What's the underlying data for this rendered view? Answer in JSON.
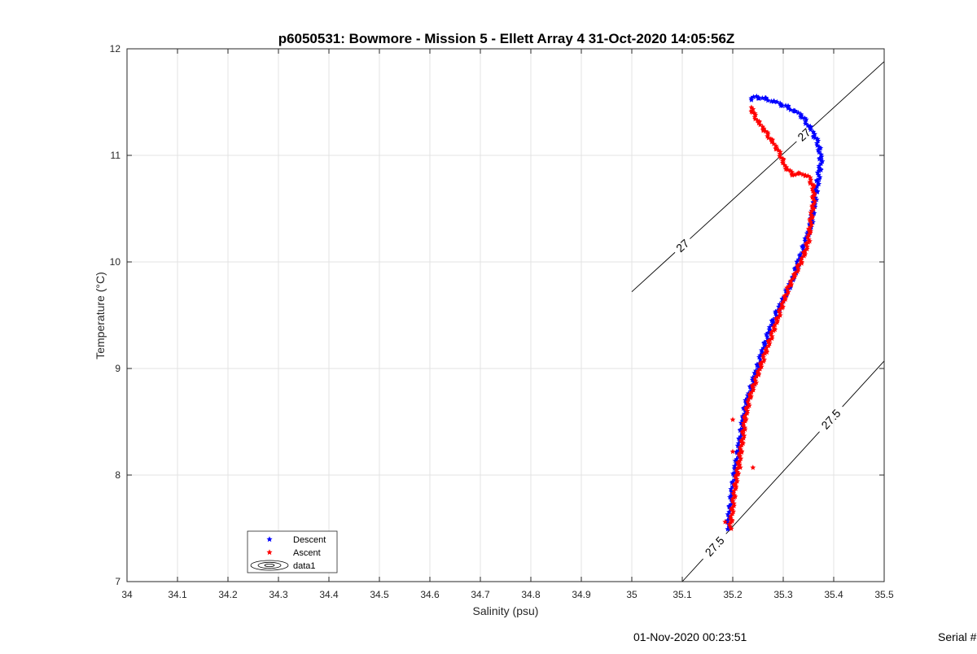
{
  "chart_data": {
    "type": "scatter",
    "title": "p6050531: Bowmore - Mission 5 - Ellett Array 4 31-Oct-2020 14:05:56Z",
    "xlabel": "Salinity (psu)",
    "ylabel": "Temperature (°C)",
    "xlim": [
      34,
      35.5
    ],
    "ylim": [
      7,
      12
    ],
    "xticks": [
      34,
      34.1,
      34.2,
      34.3,
      34.4,
      34.5,
      34.6,
      34.7,
      34.8,
      34.9,
      35,
      35.1,
      35.2,
      35.3,
      35.4,
      35.5
    ],
    "xtick_labels": [
      "34",
      "34.1",
      "34.2",
      "34.3",
      "34.4",
      "34.5",
      "34.6",
      "34.7",
      "34.8",
      "34.9",
      "35",
      "35.1",
      "35.2",
      "35.3",
      "35.4",
      "35.5"
    ],
    "yticks": [
      7,
      8,
      9,
      10,
      11,
      12
    ],
    "ytick_labels": [
      "7",
      "8",
      "9",
      "10",
      "11",
      "12"
    ],
    "grid": true,
    "legend_position": "bottom-left",
    "series": [
      {
        "name": "Descent",
        "color": "#0000ff",
        "marker": "pentagram",
        "trace": [
          [
            35.19,
            7.5
          ],
          [
            35.195,
            7.7
          ],
          [
            35.2,
            7.9
          ],
          [
            35.205,
            8.05
          ],
          [
            35.21,
            8.2
          ],
          [
            35.215,
            8.35
          ],
          [
            35.22,
            8.5
          ],
          [
            35.225,
            8.65
          ],
          [
            35.235,
            8.8
          ],
          [
            35.245,
            8.95
          ],
          [
            35.255,
            9.1
          ],
          [
            35.265,
            9.25
          ],
          [
            35.28,
            9.45
          ],
          [
            35.295,
            9.6
          ],
          [
            35.31,
            9.75
          ],
          [
            35.32,
            9.85
          ],
          [
            35.33,
            10.0
          ],
          [
            35.345,
            10.2
          ],
          [
            35.355,
            10.35
          ],
          [
            35.36,
            10.5
          ],
          [
            35.365,
            10.65
          ],
          [
            35.37,
            10.8
          ],
          [
            35.375,
            10.95
          ],
          [
            35.37,
            11.1
          ],
          [
            35.355,
            11.25
          ],
          [
            35.335,
            11.38
          ],
          [
            35.31,
            11.45
          ],
          [
            35.285,
            11.5
          ],
          [
            35.265,
            11.53
          ],
          [
            35.245,
            11.55
          ],
          [
            35.237,
            11.52
          ]
        ]
      },
      {
        "name": "Ascent",
        "color": "#ff0000",
        "marker": "pentagram",
        "trace": [
          [
            35.195,
            7.5
          ],
          [
            35.2,
            7.7
          ],
          [
            35.205,
            7.9
          ],
          [
            35.21,
            8.05
          ],
          [
            35.215,
            8.2
          ],
          [
            35.22,
            8.35
          ],
          [
            35.225,
            8.55
          ],
          [
            35.235,
            8.75
          ],
          [
            35.25,
            8.95
          ],
          [
            35.265,
            9.15
          ],
          [
            35.28,
            9.35
          ],
          [
            35.295,
            9.55
          ],
          [
            35.31,
            9.75
          ],
          [
            35.325,
            9.9
          ],
          [
            35.34,
            10.05
          ],
          [
            35.35,
            10.2
          ],
          [
            35.355,
            10.4
          ],
          [
            35.36,
            10.55
          ],
          [
            35.36,
            10.7
          ],
          [
            35.35,
            10.8
          ],
          [
            35.335,
            10.83
          ],
          [
            35.32,
            10.82
          ],
          [
            35.305,
            10.88
          ],
          [
            35.295,
            11.0
          ],
          [
            35.28,
            11.12
          ],
          [
            35.265,
            11.22
          ],
          [
            35.25,
            11.32
          ],
          [
            35.24,
            11.4
          ],
          [
            35.237,
            11.45
          ]
        ],
        "extra_points": [
          [
            35.2,
            8.52
          ],
          [
            35.2,
            8.22
          ],
          [
            35.215,
            8.07
          ],
          [
            35.185,
            7.56
          ],
          [
            35.24,
            8.07
          ]
        ]
      },
      {
        "name": "data1",
        "type": "contour",
        "color": "#000000",
        "levels": [
          {
            "label": "27",
            "line": [
              [
                35.0,
                9.72
              ],
              [
                35.5,
                11.88
              ]
            ],
            "label_positions": [
              [
                35.13,
                10.0
              ],
              [
                35.34,
                11.2
              ]
            ]
          },
          {
            "label": "27.5",
            "line": [
              [
                35.1,
                7.0
              ],
              [
                35.5,
                9.07
              ]
            ],
            "label_positions": [
              [
                35.185,
                7.24
              ],
              [
                35.4,
                8.5
              ]
            ]
          }
        ]
      }
    ]
  },
  "footer": {
    "timestamp": "01-Nov-2020 00:23:51",
    "serial": "Serial #"
  }
}
